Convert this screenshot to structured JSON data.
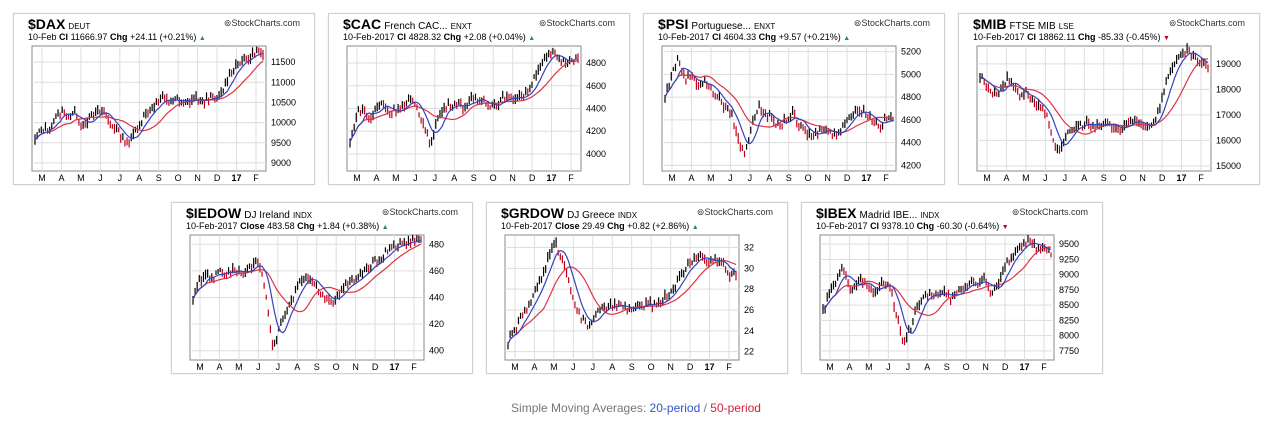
{
  "brand": "StockCharts.com",
  "colors": {
    "price": "#000000",
    "down": "#c0001a",
    "sma20": "#3344bb",
    "sma50": "#dd3344",
    "grid": "#dddddd",
    "frame": "#888888"
  },
  "caption": {
    "prefix": "Simple Moving Averages: ",
    "p20": "20-period",
    "sep": " / ",
    "p50": "50-period"
  },
  "chart_data": [
    {
      "type": "line",
      "symbol": "$DAX",
      "name": "",
      "exchange": "DEUT",
      "date": "10-Feb",
      "close_label": "Cl",
      "close": "11666.97",
      "change": "+24.11 (+0.21%)",
      "direction": "up",
      "yticks": [
        9000,
        9500,
        10000,
        10500,
        11000,
        11500
      ],
      "ytick_labels": [
        "9000",
        "9500",
        "10000",
        "10500",
        "11000",
        "11500"
      ],
      "ylim": [
        8800,
        11900
      ],
      "xticks": [
        "M",
        "A",
        "M",
        "J",
        "J",
        "A",
        "S",
        "O",
        "N",
        "D",
        "17",
        "F"
      ],
      "series": [
        {
          "name": "price",
          "values": [
            9550,
            9850,
            9820,
            10100,
            10300,
            10150,
            10250,
            9950,
            10050,
            10200,
            10300,
            10050,
            9850,
            9650,
            9500,
            9800,
            10100,
            10300,
            10450,
            10600,
            10500,
            10600,
            10450,
            10550,
            10600,
            10500,
            10650,
            10550,
            10800,
            11200,
            11450,
            11550,
            11600,
            11800,
            11650
          ]
        }
      ]
    },
    {
      "type": "line",
      "symbol": "$CAC",
      "name": "French CAC...",
      "exchange": "ENXT",
      "date": "10-Feb-2017",
      "close_label": "Cl",
      "close": "4828.32",
      "change": "+2.08 (+0.04%)",
      "direction": "up",
      "yticks": [
        4000,
        4200,
        4400,
        4600,
        4800
      ],
      "ytick_labels": [
        "4000",
        "4200",
        "4400",
        "4600",
        "4800"
      ],
      "ylim": [
        3850,
        4950
      ],
      "xticks": [
        "M",
        "A",
        "M",
        "J",
        "J",
        "A",
        "S",
        "O",
        "N",
        "D",
        "17",
        "F"
      ],
      "series": [
        {
          "name": "price",
          "values": [
            4100,
            4350,
            4400,
            4300,
            4420,
            4450,
            4350,
            4400,
            4420,
            4480,
            4400,
            4250,
            4100,
            4300,
            4400,
            4430,
            4450,
            4400,
            4480,
            4460,
            4480,
            4420,
            4450,
            4500,
            4470,
            4520,
            4500,
            4600,
            4750,
            4820,
            4880,
            4850,
            4800,
            4850,
            4830
          ]
        }
      ]
    },
    {
      "type": "line",
      "symbol": "$PSI",
      "name": "Portuguese...",
      "exchange": "ENXT",
      "date": "10-Feb-2017",
      "close_label": "Cl",
      "close": "4604.33",
      "change": "+9.57 (+0.21%)",
      "direction": "up",
      "yticks": [
        4200,
        4400,
        4600,
        4800,
        5000,
        5200
      ],
      "ytick_labels": [
        "4200",
        "4400",
        "4600",
        "4800",
        "5000",
        "5200"
      ],
      "ylim": [
        4150,
        5250
      ],
      "xticks": [
        "M",
        "A",
        "M",
        "J",
        "J",
        "A",
        "S",
        "O",
        "N",
        "D",
        "17",
        "F"
      ],
      "series": [
        {
          "name": "price",
          "values": [
            4800,
            5000,
            5150,
            4950,
            5000,
            4900,
            4950,
            4850,
            4800,
            4700,
            4650,
            4400,
            4300,
            4600,
            4700,
            4650,
            4600,
            4550,
            4600,
            4650,
            4550,
            4500,
            4450,
            4500,
            4550,
            4450,
            4500,
            4600,
            4650,
            4700,
            4650,
            4600,
            4550,
            4620,
            4604
          ]
        }
      ]
    },
    {
      "type": "line",
      "symbol": "$MIB",
      "name": "FTSE MIB",
      "exchange": "LSE",
      "date": "10-Feb-2017",
      "close_label": "Cl",
      "close": "18862.11",
      "change": "-85.33 (-0.45%)",
      "direction": "down",
      "yticks": [
        15000,
        16000,
        17000,
        18000,
        19000
      ],
      "ytick_labels": [
        "15000",
        "16000",
        "17000",
        "18000",
        "19000"
      ],
      "ylim": [
        14800,
        19700
      ],
      "xticks": [
        "M",
        "A",
        "M",
        "J",
        "J",
        "A",
        "S",
        "O",
        "N",
        "D",
        "17",
        "F"
      ],
      "series": [
        {
          "name": "price",
          "values": [
            18500,
            18200,
            17800,
            18000,
            18400,
            18200,
            17800,
            17900,
            17500,
            17300,
            16900,
            15800,
            15700,
            16200,
            16500,
            16600,
            16700,
            16500,
            16600,
            16700,
            16500,
            16400,
            16600,
            16800,
            16700,
            16500,
            16800,
            17500,
            18500,
            19100,
            19300,
            19500,
            19200,
            19000,
            18862
          ]
        }
      ]
    },
    {
      "type": "line",
      "symbol": "$IEDOW",
      "name": "DJ Ireland",
      "exchange": "INDX",
      "date": "10-Feb-2017",
      "close_label": "Close",
      "close": "483.58",
      "change": "+1.84 (+0.38%)",
      "direction": "up",
      "yticks": [
        400,
        420,
        440,
        460,
        480
      ],
      "ytick_labels": [
        "400",
        "420",
        "440",
        "460",
        "480"
      ],
      "ylim": [
        393,
        487
      ],
      "xticks": [
        "M",
        "A",
        "M",
        "J",
        "J",
        "A",
        "S",
        "O",
        "N",
        "D",
        "17",
        "F"
      ],
      "series": [
        {
          "name": "price",
          "values": [
            440,
            452,
            458,
            455,
            460,
            458,
            462,
            460,
            458,
            466,
            464,
            440,
            400,
            420,
            430,
            440,
            452,
            455,
            450,
            445,
            440,
            438,
            444,
            450,
            452,
            456,
            462,
            466,
            470,
            475,
            478,
            480,
            481,
            483,
            484
          ]
        }
      ]
    },
    {
      "type": "line",
      "symbol": "$GRDOW",
      "name": "DJ Greece",
      "exchange": "INDX",
      "date": "10-Feb-2017",
      "close_label": "Close",
      "close": "29.49",
      "change": "+0.82 (+2.86%)",
      "direction": "up",
      "yticks": [
        22,
        24,
        26,
        28,
        30,
        32
      ],
      "ytick_labels": [
        "22",
        "24",
        "26",
        "28",
        "30",
        "32"
      ],
      "ylim": [
        21.2,
        33.2
      ],
      "xticks": [
        "M",
        "A",
        "M",
        "J",
        "J",
        "A",
        "S",
        "O",
        "N",
        "D",
        "17",
        "F"
      ],
      "series": [
        {
          "name": "price",
          "values": [
            23,
            24,
            25.5,
            26,
            28,
            29,
            31,
            32.5,
            31,
            29,
            26.5,
            25,
            24.5,
            25.5,
            26,
            26.2,
            26.5,
            26.3,
            26,
            26.2,
            26.4,
            26.6,
            26.5,
            27,
            27.5,
            28.5,
            29.5,
            30.5,
            31,
            31.2,
            30.5,
            31,
            30.5,
            29.2,
            29.5
          ]
        }
      ]
    },
    {
      "type": "line",
      "symbol": "$IBEX",
      "name": "Madrid IBE...",
      "exchange": "INDX",
      "date": "10-Feb-2017",
      "close_label": "Cl",
      "close": "9378.10",
      "change": "-60.30 (-0.64%)",
      "direction": "down",
      "yticks": [
        7750,
        8000,
        8250,
        8500,
        8750,
        9000,
        9250,
        9500
      ],
      "ytick_labels": [
        "7750",
        "8000",
        "8250",
        "8500",
        "8750",
        "9000",
        "9250",
        "9500"
      ],
      "ylim": [
        7600,
        9650
      ],
      "xticks": [
        "M",
        "A",
        "M",
        "J",
        "J",
        "A",
        "S",
        "O",
        "N",
        "D",
        "17",
        "F"
      ],
      "series": [
        {
          "name": "price",
          "values": [
            8400,
            8700,
            8900,
            9100,
            8800,
            8850,
            8900,
            8750,
            8700,
            8900,
            8800,
            8300,
            7900,
            8100,
            8500,
            8600,
            8700,
            8650,
            8700,
            8600,
            8700,
            8800,
            8900,
            8850,
            8950,
            8700,
            8800,
            9100,
            9300,
            9400,
            9550,
            9500,
            9450,
            9400,
            9378
          ]
        }
      ]
    }
  ]
}
